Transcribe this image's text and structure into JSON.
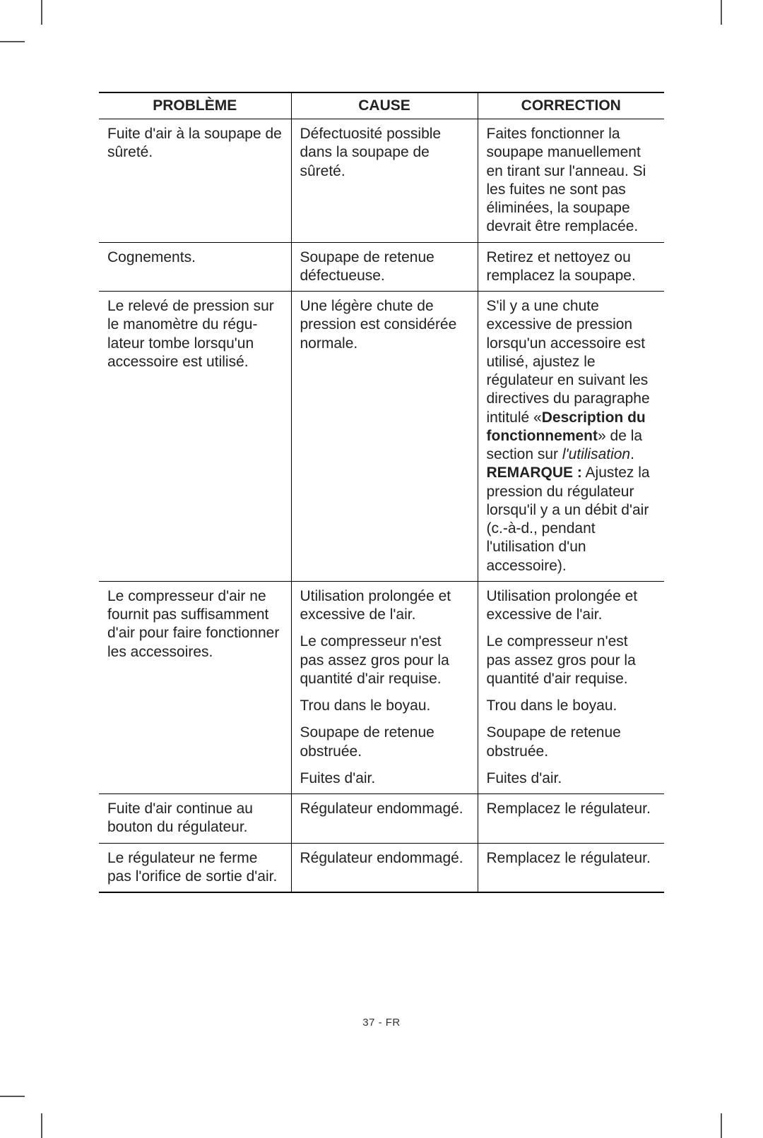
{
  "headers": {
    "problem": "PROBLÈME",
    "cause": "CAUSE",
    "correction": "CORRECTION"
  },
  "rows": {
    "r1": {
      "problem": "Fuite d'air à la sou­pape de sûreté.",
      "cause": "Défectuosité pos­sible dans la sou­pape de sûreté.",
      "correction": "Faites fonctionner la soupape manuellement en tirant sur l'anneau. Si les fuites ne sont pas éliminées, la soupape devrait être remplacée."
    },
    "r2": {
      "problem": "Cognements.",
      "cause": "Soupape de retenue défectueuse.",
      "correction": "Retirez et nettoyez ou remplacez la soupape."
    },
    "r3": {
      "problem": "Le relevé de pression sur le manomètre du régu­lateur tombe lorsqu'un accessoire est utilisé.",
      "cause": "Une légère chute de pression est consi­dérée normale.",
      "correction_a": "S'il y a une chute excessive de pression lorsqu'un accessoire est utilisé, ajustez le régulateur en suivant les directives du paragraphe intitulé «",
      "correction_b_bold": "Description du fonctionnement",
      "correction_c": "» de la section sur ",
      "correction_d_italic": "l'utilisation",
      "correction_e": ". ",
      "correction_f_bold": "REMARQUE :",
      "correction_g": " Ajustez la pression du régu­lateur lorsqu'il y a un débit d'air (c.-à-d., pendant l'utilisation d'un accessoire)."
    },
    "r4": {
      "problem": "Le compresseur d'air ne fournit pas suffisamment d'air pour faire fonction­ner les accessoires.",
      "cause1": "Utilisation prolongée et excessive de l'air.",
      "cause2": "Le compresseur n'est pas assez gros pour la quantité d'air requise.",
      "cause3": "Trou dans le boyau.",
      "cause4": "Soupape de retenue obstruée.",
      "cause5": "Fuites d'air.",
      "corr1": "Utilisation prolongée et excessive de l'air.",
      "corr2": "Le compresseur n'est pas assez gros pour la quantité d'air requise.",
      "corr3": "Trou dans le boyau.",
      "corr4": "Soupape de retenue obstruée.",
      "corr5": "Fuites d'air."
    },
    "r5": {
      "problem": "Fuite d'air continue au bouton du régulateur.",
      "cause": "Régulateur endommagé.",
      "correction": "Remplacez le régulateur."
    },
    "r6": {
      "problem": "Le régulateur ne ferme pas l'orifice de sortie d'air.",
      "cause": "Régulateur endommagé.",
      "correction": "Remplacez le régulateur."
    }
  },
  "footer": "37 - FR"
}
